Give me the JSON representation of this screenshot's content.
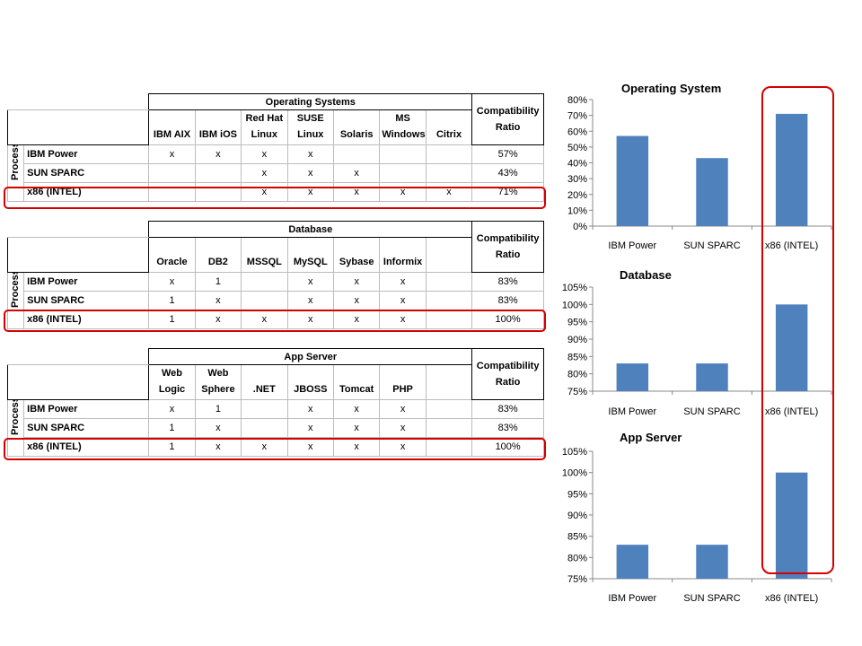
{
  "tables": [
    {
      "group": "Operating Systems",
      "columns": [
        "IBM AIX",
        "IBM iOS",
        "Red Hat Linux",
        "SUSE Linux",
        "Solaris",
        "MS Windows",
        "Citrix"
      ],
      "ratio_header": "Compatibility Ratio",
      "side_label": "Processor",
      "rows": [
        {
          "label": "IBM Power",
          "cells": [
            "x",
            "x",
            "x",
            "x",
            "",
            "",
            ""
          ],
          "ratio": "57%"
        },
        {
          "label": "SUN SPARC",
          "cells": [
            "",
            "",
            "x",
            "x",
            "x",
            "",
            ""
          ],
          "ratio": "43%"
        },
        {
          "label": "x86 (INTEL)",
          "cells": [
            "",
            "",
            "x",
            "x",
            "x",
            "x",
            "x"
          ],
          "ratio": "71%"
        }
      ]
    },
    {
      "group": "Database",
      "columns": [
        "Oracle",
        "DB2",
        "MSSQL",
        "MySQL",
        "Sybase",
        "Informix",
        ""
      ],
      "ratio_header": "Compatibility Ratio",
      "side_label": "Processor",
      "rows": [
        {
          "label": "IBM Power",
          "cells": [
            "x",
            "1",
            "",
            "x",
            "x",
            "x",
            ""
          ],
          "ratio": "83%"
        },
        {
          "label": "SUN SPARC",
          "cells": [
            "1",
            "x",
            "",
            "x",
            "x",
            "x",
            ""
          ],
          "ratio": "83%"
        },
        {
          "label": "x86 (INTEL)",
          "cells": [
            "1",
            "x",
            "x",
            "x",
            "x",
            "x",
            ""
          ],
          "ratio": "100%"
        }
      ]
    },
    {
      "group": "App Server",
      "columns": [
        "Web Logic",
        "Web Sphere",
        ".NET",
        "JBOSS",
        "Tomcat",
        "PHP",
        ""
      ],
      "ratio_header": "Compatibility Ratio",
      "side_label": "Processor",
      "rows": [
        {
          "label": "IBM Power",
          "cells": [
            "x",
            "1",
            "",
            "x",
            "x",
            "x",
            ""
          ],
          "ratio": "83%"
        },
        {
          "label": "SUN SPARC",
          "cells": [
            "1",
            "x",
            "",
            "x",
            "x",
            "x",
            ""
          ],
          "ratio": "83%"
        },
        {
          "label": "x86 (INTEL)",
          "cells": [
            "1",
            "x",
            "x",
            "x",
            "x",
            "x",
            ""
          ],
          "ratio": "100%"
        }
      ]
    }
  ],
  "chart_data": [
    {
      "type": "bar",
      "title": "Operating System",
      "categories": [
        "IBM Power",
        "SUN SPARC",
        "x86 (INTEL)"
      ],
      "values": [
        57,
        43,
        71
      ],
      "ylim": [
        0,
        80
      ],
      "yticks": [
        0,
        10,
        20,
        30,
        40,
        50,
        60,
        70,
        80
      ],
      "tick_format": "%",
      "grid": false,
      "bar_color": "#4f81bd"
    },
    {
      "type": "bar",
      "title": "Database",
      "categories": [
        "IBM Power",
        "SUN SPARC",
        "x86 (INTEL)"
      ],
      "values": [
        83,
        83,
        100
      ],
      "ylim": [
        75,
        105
      ],
      "yticks": [
        75,
        80,
        85,
        90,
        95,
        100,
        105
      ],
      "tick_format": "%",
      "grid": false,
      "bar_color": "#4f81bd"
    },
    {
      "type": "bar",
      "title": "App Server",
      "categories": [
        "IBM Power",
        "SUN SPARC",
        "x86 (INTEL)"
      ],
      "values": [
        83,
        83,
        100
      ],
      "ylim": [
        75,
        105
      ],
      "yticks": [
        75,
        80,
        85,
        90,
        95,
        100,
        105
      ],
      "tick_format": "%",
      "grid": false,
      "bar_color": "#4f81bd"
    }
  ],
  "highlight_color": "#d40000"
}
